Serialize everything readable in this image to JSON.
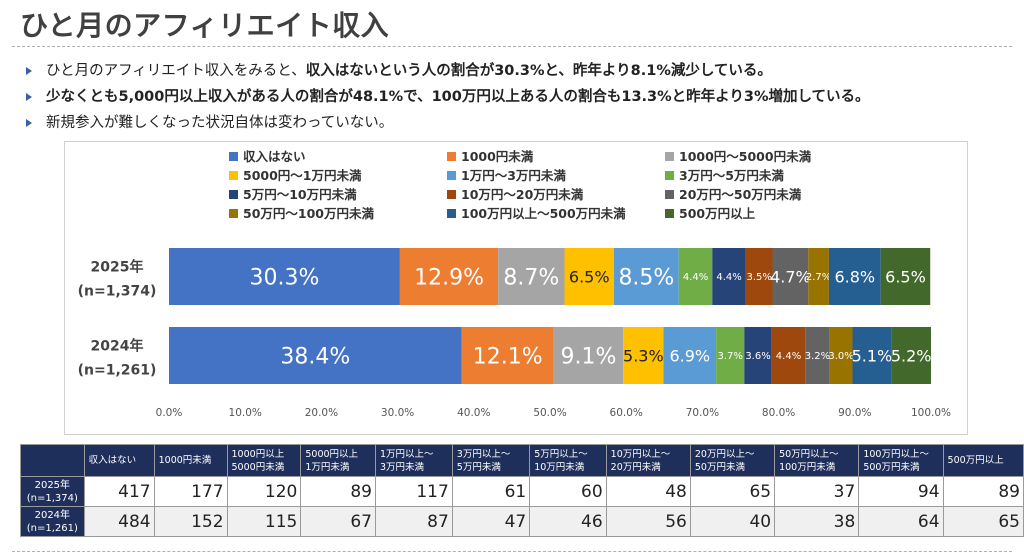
{
  "title": "ひと月のアフィリエイト収入",
  "bullets": [
    {
      "pre": "ひと月のアフィリエイト収入をみると、",
      "bold": "収入はないという人の割合が30.3%と、昨年より8.1%減少している。"
    },
    {
      "pre": "",
      "bold": "少なくとも5,000円以上収入がある人の割合が48.1%で、100万円以上ある人の割合も13.3%と昨年より3%増加している。"
    },
    {
      "pre": "新規参入が難しくなった状況自体は変わっていない。",
      "bold": ""
    }
  ],
  "chart_data": {
    "type": "bar",
    "orientation": "horizontal-stacked-100",
    "categories": [
      {
        "line1": "2025年",
        "line2": "(n=1,374)"
      },
      {
        "line1": "2024年",
        "line2": "(n=1,261)"
      }
    ],
    "series": [
      {
        "name": "収入はない",
        "color": "#4472c4",
        "values": [
          30.3,
          38.4
        ],
        "labels": [
          "30.3%",
          "38.4%"
        ]
      },
      {
        "name": "1000円未満",
        "color": "#ed7d31",
        "values": [
          12.9,
          12.1
        ],
        "labels": [
          "12.9%",
          "12.1%"
        ]
      },
      {
        "name": "1000円～5000円未満",
        "color": "#a5a5a5",
        "values": [
          8.7,
          9.1
        ],
        "labels": [
          "8.7%",
          "9.1%"
        ]
      },
      {
        "name": "5000円～1万円未満",
        "color": "#ffc000",
        "values": [
          6.5,
          5.3
        ],
        "labels": [
          "6.5%",
          "5.3%"
        ]
      },
      {
        "name": "1万円～3万円未満",
        "color": "#5b9bd5",
        "values": [
          8.5,
          6.9
        ],
        "labels": [
          "8.5%",
          "6.9%"
        ]
      },
      {
        "name": "3万円～5万円未満",
        "color": "#70ad47",
        "values": [
          4.4,
          3.7
        ],
        "labels": [
          "4.4%",
          "3.7%"
        ]
      },
      {
        "name": "5万円～10万円未満",
        "color": "#264478",
        "values": [
          4.4,
          3.6
        ],
        "labels": [
          "4.4%",
          "3.6%"
        ]
      },
      {
        "name": "10万円～20万円未満",
        "color": "#9e480e",
        "values": [
          3.5,
          4.4
        ],
        "labels": [
          "3.5%",
          "4.4%"
        ]
      },
      {
        "name": "20万円～50万円未満",
        "color": "#636363",
        "values": [
          4.7,
          3.2
        ],
        "labels": [
          "4.7%",
          "3.2%"
        ]
      },
      {
        "name": "50万円～100万円未満",
        "color": "#997300",
        "values": [
          2.7,
          3.0
        ],
        "labels": [
          "2.7%",
          "3.0%"
        ]
      },
      {
        "name": "100万円以上～500万円未満",
        "color": "#255e91",
        "values": [
          6.8,
          5.1
        ],
        "labels": [
          "6.8%",
          "5.1%"
        ]
      },
      {
        "name": "500万円以上",
        "color": "#43682b",
        "values": [
          6.5,
          5.2
        ],
        "labels": [
          "6.5%",
          "5.2%"
        ]
      }
    ],
    "xlim": [
      0,
      100
    ],
    "xticks": [
      "0.0%",
      "10.0%",
      "20.0%",
      "30.0%",
      "40.0%",
      "50.0%",
      "60.0%",
      "70.0%",
      "80.0%",
      "90.0%",
      "100.0%"
    ],
    "legend": "top",
    "grid": false
  },
  "table": {
    "headers": [
      {
        "l1": "",
        "l2": ""
      },
      {
        "l1": "収入はない",
        "l2": ""
      },
      {
        "l1": "1000円未満",
        "l2": ""
      },
      {
        "l1": "1000円以上",
        "l2": "5000円未満"
      },
      {
        "l1": "5000円以上",
        "l2": "1万円未満"
      },
      {
        "l1": "1万円以上～",
        "l2": "3万円未満"
      },
      {
        "l1": "3万円以上～",
        "l2": "5万円未満"
      },
      {
        "l1": "5万円以上～",
        "l2": "10万円未満"
      },
      {
        "l1": "10万円以上～",
        "l2": "20万円未満"
      },
      {
        "l1": "20万円以上～",
        "l2": "50万円未満"
      },
      {
        "l1": "50万円以上～",
        "l2": "100万円未満"
      },
      {
        "l1": "100万円以上～",
        "l2": "500万円未満"
      },
      {
        "l1": "500万円以上",
        "l2": ""
      }
    ],
    "rows": [
      {
        "label1": "2025年",
        "label2": "(n=1,374)",
        "values": [
          "417",
          "177",
          "120",
          "89",
          "117",
          "61",
          "60",
          "48",
          "65",
          "37",
          "94",
          "89"
        ]
      },
      {
        "label1": "2024年",
        "label2": "(n=1,261)",
        "values": [
          "484",
          "152",
          "115",
          "67",
          "87",
          "47",
          "46",
          "56",
          "40",
          "38",
          "64",
          "65"
        ]
      }
    ]
  }
}
